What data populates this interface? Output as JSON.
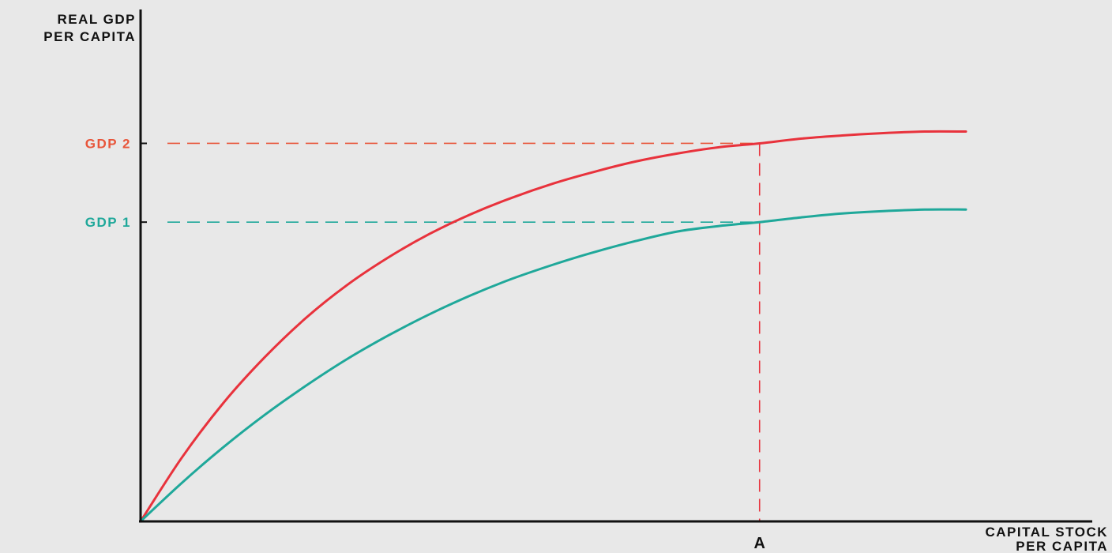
{
  "chart_data": {
    "type": "line",
    "title": "",
    "ylabel_lines": [
      "REAL GDP",
      "PER CAPITA"
    ],
    "xlabel_lines": [
      "CAPITAL STOCK",
      "PER CAPITA"
    ],
    "x_marker": {
      "label": "A",
      "x": 75
    },
    "y_ticks": [
      {
        "label": "GDP 2",
        "value": 48,
        "color": "#e8553a"
      },
      {
        "label": "GDP 1",
        "value": 38,
        "color": "#1fa89a"
      }
    ],
    "xlim": [
      0,
      100
    ],
    "ylim": [
      0,
      65
    ],
    "grid": false,
    "legend": "none",
    "axis_color": "#111111",
    "series": [
      {
        "color": "#e8323c",
        "x": [
          0,
          5,
          10,
          15,
          20,
          25,
          30,
          35,
          40,
          45,
          50,
          55,
          60,
          65,
          70,
          75,
          80,
          85,
          90,
          95,
          100
        ],
        "y": [
          0,
          8.1,
          15.0,
          20.8,
          25.8,
          30.0,
          33.5,
          36.5,
          39.0,
          41.1,
          42.9,
          44.4,
          45.7,
          46.7,
          47.5,
          48.0,
          48.6,
          49.0,
          49.3,
          49.5,
          49.5
        ]
      },
      {
        "color": "#1fa89a",
        "x": [
          0,
          5,
          10,
          15,
          20,
          25,
          30,
          35,
          40,
          45,
          50,
          55,
          60,
          65,
          70,
          75,
          80,
          85,
          90,
          95,
          100
        ],
        "y": [
          0,
          4.9,
          9.4,
          13.5,
          17.2,
          20.6,
          23.6,
          26.3,
          28.7,
          30.8,
          32.6,
          34.2,
          35.6,
          36.8,
          37.5,
          38.0,
          38.6,
          39.1,
          39.4,
          39.6,
          39.6
        ]
      }
    ]
  }
}
